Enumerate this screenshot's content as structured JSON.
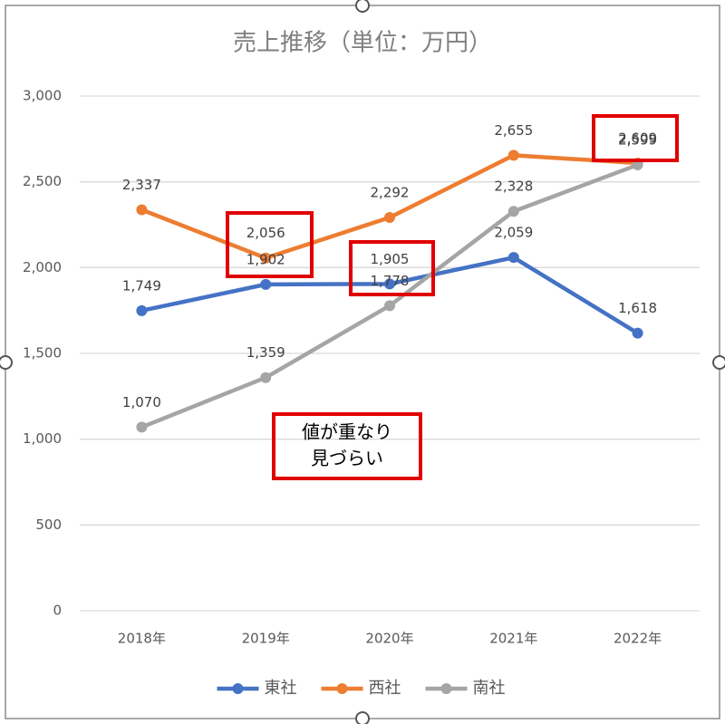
{
  "chart_data": {
    "type": "line",
    "title": "売上推移（単位：万円）",
    "categories": [
      "2018年",
      "2019年",
      "2020年",
      "2021年",
      "2022年"
    ],
    "series": [
      {
        "name": "東社",
        "color": "#4472c4",
        "values": [
          1749,
          1902,
          1905,
          2059,
          1618
        ],
        "value_labels": [
          "1,749",
          "1,902",
          "1,905",
          "2,059",
          "1,618"
        ]
      },
      {
        "name": "西社",
        "color": "#ed7d31",
        "values": [
          2337,
          2056,
          2292,
          2655,
          2609
        ],
        "value_labels": [
          "2,337",
          "2,056",
          "2,292",
          "2,655",
          "2,609"
        ]
      },
      {
        "name": "南社",
        "color": "#a5a5a5",
        "values": [
          1070,
          1359,
          1778,
          2328,
          2599
        ],
        "value_labels": [
          "1,070",
          "1,359",
          "1,778",
          "2,328",
          "2,599"
        ]
      }
    ],
    "ylim": [
      0,
      3000
    ],
    "yticks": [
      0,
      500,
      {
        "value": 1000,
        "label": "1,000"
      },
      {
        "value": 1500,
        "label": "1,500"
      },
      {
        "value": 2000,
        "label": "2,000"
      },
      {
        "value": 2500,
        "label": "2,500"
      },
      {
        "value": 3000,
        "label": "3,000"
      }
    ],
    "grid": true,
    "legend": "bottom",
    "annotation": [
      "値が重なり",
      "見づらい"
    ]
  }
}
